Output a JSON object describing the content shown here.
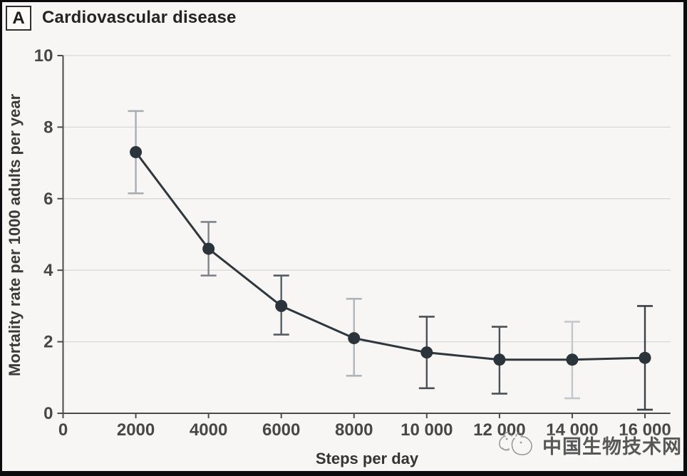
{
  "figure": {
    "panel_label": "A",
    "title": "Cardiovascular disease"
  },
  "watermark": {
    "text": "中国生物技术网",
    "logo": "panda-sketch-logo"
  },
  "chart_data": {
    "type": "line",
    "title": "Cardiovascular disease",
    "xlabel": "Steps per day",
    "ylabel": "Mortality rate per 1000 adults per year",
    "xlim": [
      0,
      16700
    ],
    "ylim": [
      0,
      10
    ],
    "grid": "horizontal",
    "legend": "none",
    "x_ticks": [
      0,
      2000,
      4000,
      6000,
      8000,
      10000,
      12000,
      14000,
      16000
    ],
    "x_tick_labels": [
      "0",
      "2000",
      "4000",
      "6000",
      "8000",
      "10 000",
      "12 000",
      "14 000",
      "16 000"
    ],
    "y_ticks": [
      0,
      2,
      4,
      6,
      8,
      10
    ],
    "y_tick_labels": [
      "0",
      "2",
      "4",
      "6",
      "8",
      "10"
    ],
    "series": [
      {
        "name": "Cardiovascular disease mortality",
        "x": [
          2000,
          4000,
          6000,
          8000,
          10000,
          12000,
          14000,
          16000
        ],
        "y": [
          7.3,
          4.6,
          3.0,
          2.1,
          1.7,
          1.5,
          1.5,
          1.55
        ],
        "ci_low": [
          6.15,
          3.85,
          2.2,
          1.05,
          0.7,
          0.55,
          0.42,
          0.1
        ],
        "ci_high": [
          8.45,
          5.35,
          3.85,
          3.2,
          2.7,
          2.42,
          2.56,
          3.0
        ]
      }
    ],
    "error_bar_colors": [
      "#a9aeb4",
      "#7e848a",
      "#555d64",
      "#b0b5ba",
      "#4a5257",
      "#4a5257",
      "#c3c7cb",
      "#3a4248"
    ],
    "colors": {
      "line": "#2f373d",
      "point": "#2b343b",
      "grid": "#d8d8d8",
      "axis": "#4c4c4c",
      "tick_text": "#474747"
    }
  }
}
